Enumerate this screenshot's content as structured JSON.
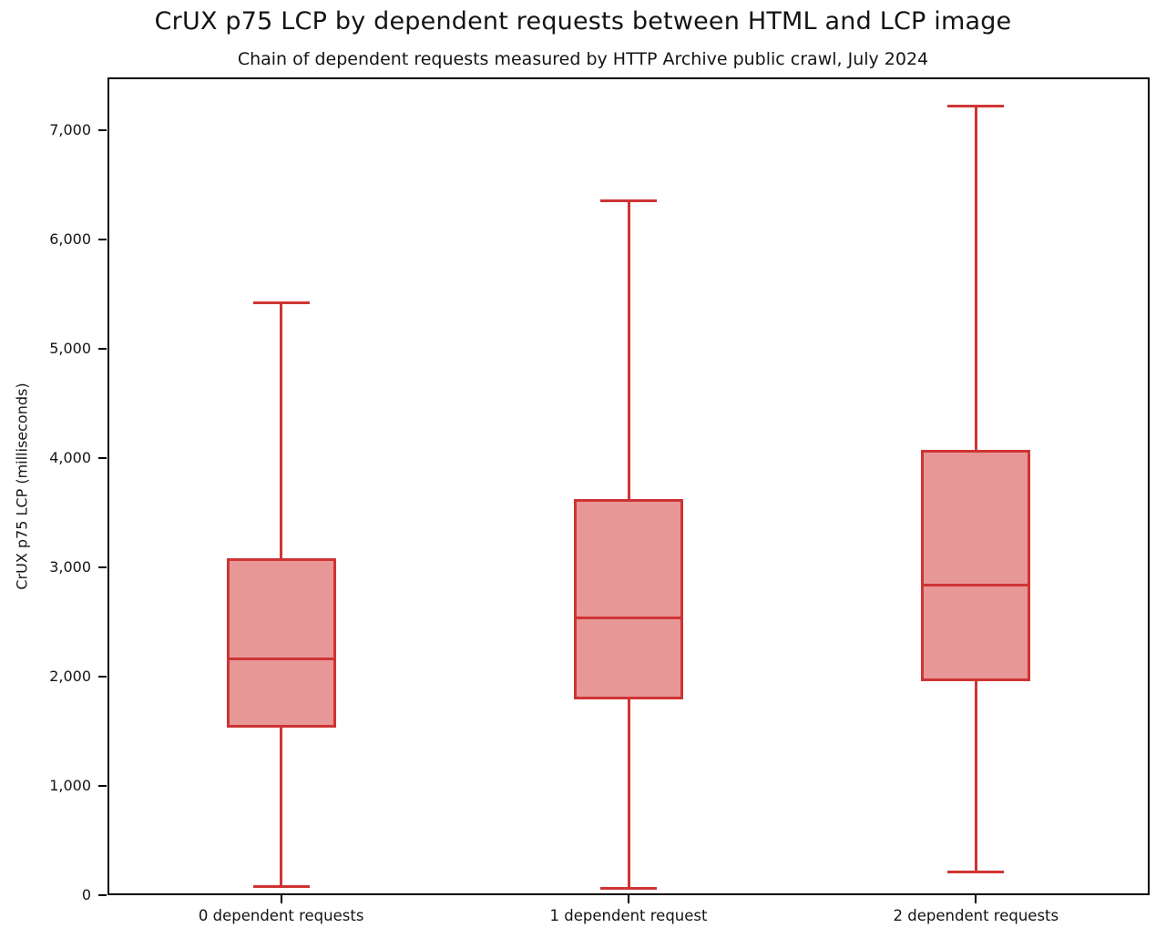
{
  "chart_data": {
    "type": "boxplot",
    "title": "CrUX p75 LCP by dependent requests between HTML and LCP image",
    "subtitle": "Chain of dependent requests measured by HTTP Archive public crawl, July 2024",
    "ylabel": "CrUX p75 LCP (milliseconds)",
    "xlabel": "",
    "ylim": [
      0,
      7480
    ],
    "grid": false,
    "legend": false,
    "categories": [
      "0 dependent requests",
      "1 dependent request",
      "2 dependent requests"
    ],
    "yticks": [
      {
        "value": 0,
        "label": "0"
      },
      {
        "value": 1000,
        "label": "1,000"
      },
      {
        "value": 2000,
        "label": "2,000"
      },
      {
        "value": 3000,
        "label": "3,000"
      },
      {
        "value": 4000,
        "label": "4,000"
      },
      {
        "value": 5000,
        "label": "5,000"
      },
      {
        "value": 6000,
        "label": "6,000"
      },
      {
        "value": 7000,
        "label": "7,000"
      }
    ],
    "series": [
      {
        "name": "0 dependent requests",
        "whisker_low": 80,
        "q1": 1530,
        "median": 2160,
        "q3": 3080,
        "whisker_high": 5420
      },
      {
        "name": "1 dependent request",
        "whisker_low": 60,
        "q1": 1790,
        "median": 2540,
        "q3": 3620,
        "whisker_high": 6350
      },
      {
        "name": "2 dependent requests",
        "whisker_low": 210,
        "q1": 1960,
        "median": 2840,
        "q3": 4070,
        "whisker_high": 7220
      }
    ],
    "colors": {
      "box_line": "#cf3434",
      "box_fill": "#e89797",
      "axis": "#000000",
      "text": "#141414"
    }
  }
}
